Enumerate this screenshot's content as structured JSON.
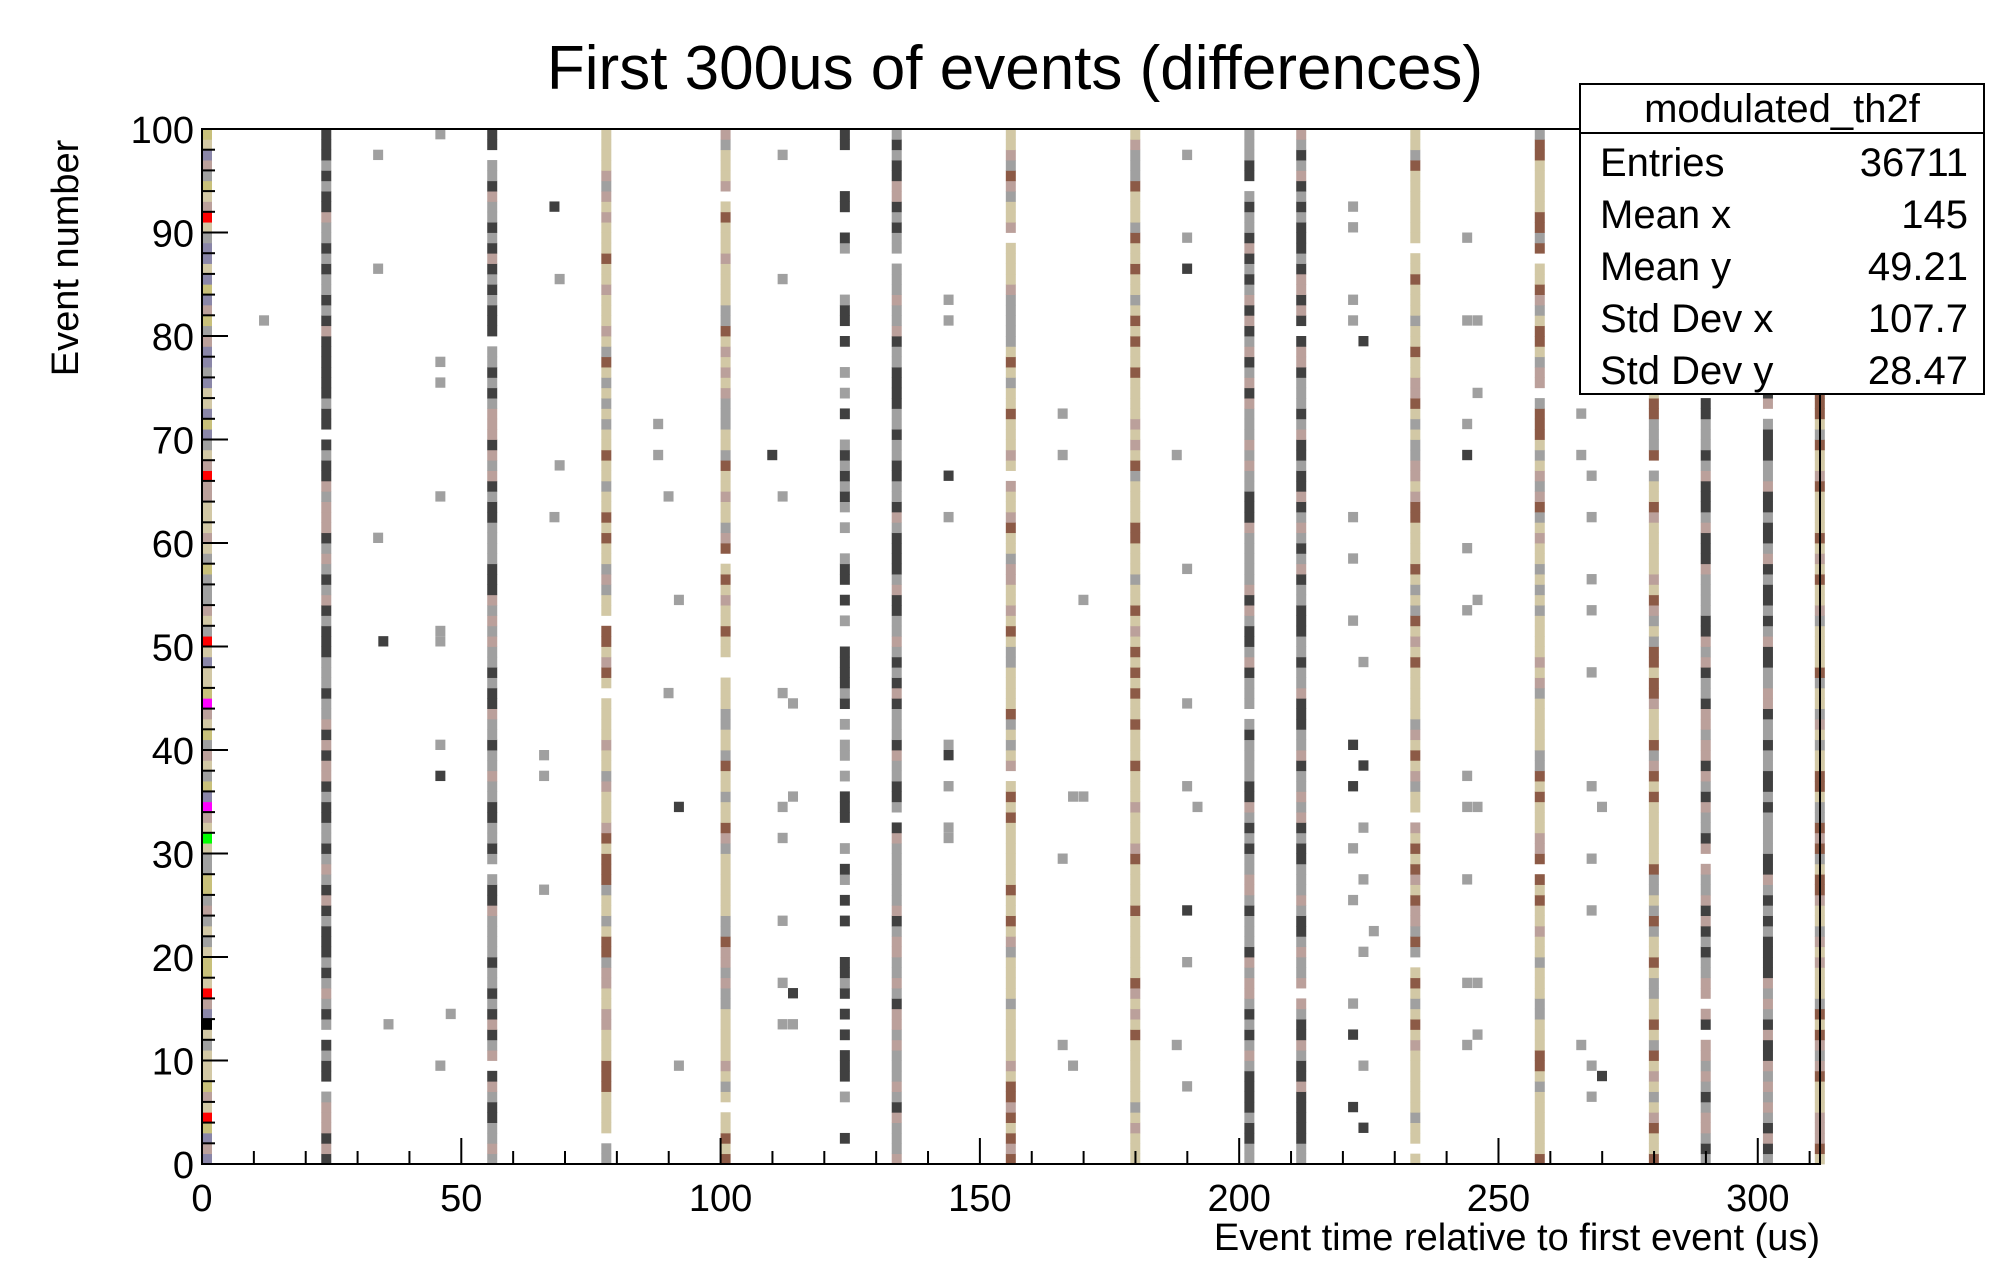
{
  "chart_data": {
    "type": "heatmap",
    "title": "First 300us of events (differences)",
    "xlabel": "Event time relative to first event (us)",
    "ylabel": "Event number",
    "xlim": [
      0,
      312
    ],
    "ylim": [
      0,
      100
    ],
    "x_ticks": [
      0,
      50,
      100,
      150,
      200,
      250,
      300
    ],
    "y_ticks": [
      0,
      10,
      20,
      30,
      40,
      50,
      60,
      70,
      80,
      90,
      100
    ],
    "grid": false,
    "stats_box": {
      "name": "modulated_th2f",
      "rows": [
        {
          "label": "Entries",
          "value": "36711"
        },
        {
          "label": "Mean x",
          "value": "145"
        },
        {
          "label": "Mean y",
          "value": "49.21"
        },
        {
          "label": "Std Dev x",
          "value": "107.7"
        },
        {
          "label": "Std Dev y",
          "value": "28.47"
        }
      ]
    },
    "palette": {
      "light_gray": "#a0a0a0",
      "dark_gray": "#404040",
      "tan": "#d2c8a5",
      "rose": "#bba09b",
      "brown": "#8c5a46",
      "red": "#ff0000",
      "magenta": "#ff00ff",
      "green": "#00ff00",
      "black": "#000000"
    },
    "columns": [
      {
        "x": 0,
        "style": "colorful"
      },
      {
        "x": 23,
        "style": "gray"
      },
      {
        "x": 55,
        "style": "gray"
      },
      {
        "x": 77,
        "style": "tan"
      },
      {
        "x": 100,
        "style": "tan"
      },
      {
        "x": 123,
        "style": "gray-sparse"
      },
      {
        "x": 133,
        "style": "gray"
      },
      {
        "x": 155,
        "style": "tan"
      },
      {
        "x": 179,
        "style": "tan"
      },
      {
        "x": 201,
        "style": "gray"
      },
      {
        "x": 211,
        "style": "gray"
      },
      {
        "x": 233,
        "style": "tan"
      },
      {
        "x": 257,
        "style": "tan"
      },
      {
        "x": 279,
        "style": "tan"
      },
      {
        "x": 289,
        "style": "gray"
      },
      {
        "x": 301,
        "style": "gray"
      },
      {
        "x": 311,
        "style": "tan"
      }
    ],
    "scatter_cells": [
      [
        11,
        81
      ],
      [
        33,
        97
      ],
      [
        33,
        86
      ],
      [
        33,
        60
      ],
      [
        34,
        50
      ],
      [
        35,
        13
      ],
      [
        45,
        99
      ],
      [
        45,
        77
      ],
      [
        45,
        75
      ],
      [
        45,
        64
      ],
      [
        45,
        51
      ],
      [
        45,
        50
      ],
      [
        45,
        40
      ],
      [
        45,
        37
      ],
      [
        45,
        9
      ],
      [
        47,
        14
      ],
      [
        67,
        92
      ],
      [
        68,
        85
      ],
      [
        68,
        67
      ],
      [
        67,
        62
      ],
      [
        65,
        39
      ],
      [
        65,
        37
      ],
      [
        65,
        26
      ],
      [
        87,
        71
      ],
      [
        87,
        68
      ],
      [
        89,
        64
      ],
      [
        89,
        45
      ],
      [
        91,
        54
      ],
      [
        91,
        34
      ],
      [
        91,
        9
      ],
      [
        111,
        97
      ],
      [
        111,
        85
      ],
      [
        109,
        68
      ],
      [
        111,
        64
      ],
      [
        111,
        45
      ],
      [
        113,
        44
      ],
      [
        111,
        34
      ],
      [
        113,
        35
      ],
      [
        111,
        31
      ],
      [
        111,
        23
      ],
      [
        111,
        17
      ],
      [
        113,
        16
      ],
      [
        111,
        13
      ],
      [
        113,
        13
      ],
      [
        143,
        83
      ],
      [
        143,
        81
      ],
      [
        143,
        66
      ],
      [
        143,
        62
      ],
      [
        143,
        40
      ],
      [
        143,
        39
      ],
      [
        143,
        36
      ],
      [
        143,
        32
      ],
      [
        143,
        31
      ],
      [
        165,
        72
      ],
      [
        165,
        68
      ],
      [
        167,
        35
      ],
      [
        169,
        35
      ],
      [
        169,
        54
      ],
      [
        165,
        29
      ],
      [
        165,
        11
      ],
      [
        167,
        9
      ],
      [
        189,
        97
      ],
      [
        189,
        89
      ],
      [
        189,
        86
      ],
      [
        187,
        68
      ],
      [
        189,
        57
      ],
      [
        189,
        44
      ],
      [
        189,
        36
      ],
      [
        191,
        34
      ],
      [
        189,
        24
      ],
      [
        189,
        19
      ],
      [
        187,
        11
      ],
      [
        189,
        7
      ],
      [
        221,
        92
      ],
      [
        221,
        90
      ],
      [
        221,
        83
      ],
      [
        221,
        81
      ],
      [
        223,
        79
      ],
      [
        221,
        62
      ],
      [
        221,
        58
      ],
      [
        221,
        52
      ],
      [
        223,
        48
      ],
      [
        221,
        40
      ],
      [
        223,
        38
      ],
      [
        221,
        36
      ],
      [
        223,
        32
      ],
      [
        221,
        30
      ],
      [
        223,
        27
      ],
      [
        221,
        25
      ],
      [
        225,
        22
      ],
      [
        223,
        20
      ],
      [
        221,
        15
      ],
      [
        221,
        12
      ],
      [
        223,
        9
      ],
      [
        221,
        5
      ],
      [
        223,
        3
      ],
      [
        243,
        89
      ],
      [
        243,
        81
      ],
      [
        245,
        81
      ],
      [
        245,
        74
      ],
      [
        243,
        71
      ],
      [
        243,
        68
      ],
      [
        243,
        59
      ],
      [
        245,
        54
      ],
      [
        243,
        53
      ],
      [
        243,
        37
      ],
      [
        243,
        34
      ],
      [
        245,
        34
      ],
      [
        243,
        27
      ],
      [
        243,
        17
      ],
      [
        245,
        17
      ],
      [
        245,
        12
      ],
      [
        243,
        11
      ],
      [
        265,
        72
      ],
      [
        265,
        68
      ],
      [
        267,
        66
      ],
      [
        267,
        62
      ],
      [
        267,
        56
      ],
      [
        267,
        53
      ],
      [
        267,
        47
      ],
      [
        267,
        36
      ],
      [
        269,
        34
      ],
      [
        267,
        29
      ],
      [
        267,
        24
      ],
      [
        265,
        11
      ],
      [
        267,
        9
      ],
      [
        267,
        6
      ],
      [
        269,
        8
      ]
    ]
  }
}
